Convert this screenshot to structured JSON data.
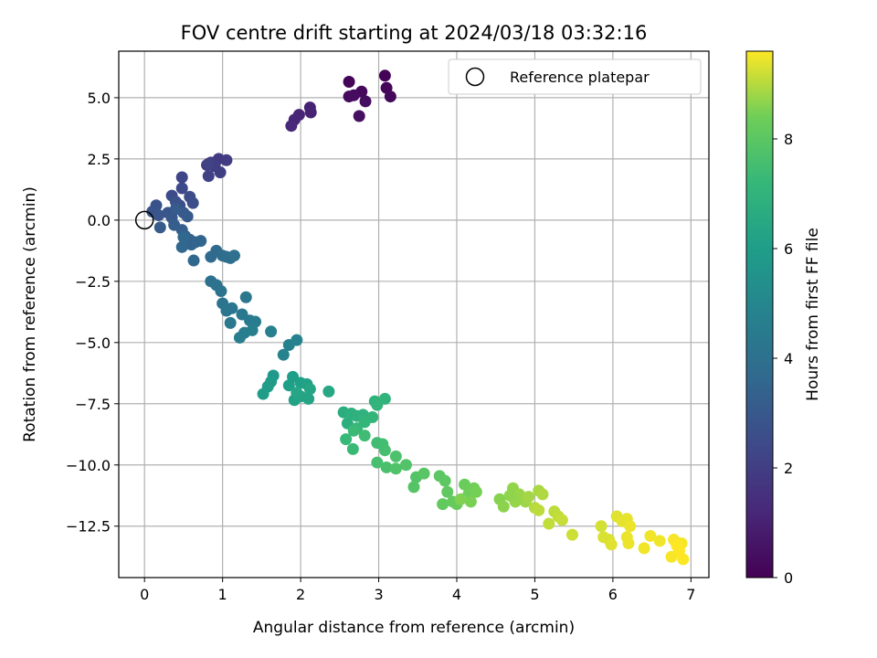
{
  "chart_data": {
    "type": "scatter",
    "title": "FOV centre drift starting at 2024/03/18 03:32:16",
    "xlabel": "Angular distance from reference (arcmin)",
    "ylabel": "Rotation from reference (arcmin)",
    "xlim": [
      -0.33,
      7.23
    ],
    "ylim": [
      -14.6,
      6.9
    ],
    "xticks": [
      0,
      1,
      2,
      3,
      4,
      5,
      6,
      7
    ],
    "xtick_labels": [
      "0",
      "1",
      "2",
      "3",
      "4",
      "5",
      "6",
      "7"
    ],
    "yticks": [
      5.0,
      2.5,
      0.0,
      -2.5,
      -5.0,
      -7.5,
      -10.0,
      -12.5
    ],
    "ytick_labels": [
      "5.0",
      "2.5",
      "0.0",
      "−2.5",
      "−5.0",
      "−7.5",
      "−10.0",
      "−12.5"
    ],
    "grid": true,
    "legend": {
      "position": "upper right",
      "entries": [
        "Reference platepar"
      ]
    },
    "reference_point": {
      "label": "Reference platepar",
      "x": 0.0,
      "y": 0.0
    },
    "colormap": "viridis",
    "colorbar": {
      "label": "Hours from first FF file",
      "range": [
        0,
        9.6
      ],
      "ticks": [
        0,
        2,
        4,
        6,
        8
      ],
      "tick_labels": [
        "0",
        "2",
        "4",
        "6",
        "8"
      ]
    },
    "points": [
      [
        3.08,
        5.9,
        0.05
      ],
      [
        2.62,
        5.65,
        0.1
      ],
      [
        3.1,
        5.4,
        0.15
      ],
      [
        2.78,
        5.25,
        0.2
      ],
      [
        3.15,
        5.05,
        0.25
      ],
      [
        2.62,
        5.05,
        0.3
      ],
      [
        2.68,
        5.1,
        0.35
      ],
      [
        2.83,
        4.85,
        0.4
      ],
      [
        2.75,
        4.25,
        0.45
      ],
      [
        2.12,
        4.6,
        1.0
      ],
      [
        2.13,
        4.4,
        1.05
      ],
      [
        1.98,
        4.3,
        1.1
      ],
      [
        1.92,
        4.1,
        1.15
      ],
      [
        1.88,
        3.85,
        1.2
      ],
      [
        0.8,
        2.25,
        1.8
      ],
      [
        0.85,
        2.35,
        1.85
      ],
      [
        0.95,
        2.5,
        1.9
      ],
      [
        1.05,
        2.45,
        1.95
      ],
      [
        0.9,
        2.2,
        2.0
      ],
      [
        0.97,
        1.95,
        2.05
      ],
      [
        0.82,
        1.8,
        2.1
      ],
      [
        0.82,
        2.3,
        2.15
      ],
      [
        0.48,
        1.75,
        2.3
      ],
      [
        0.48,
        1.3,
        2.4
      ],
      [
        0.35,
        1.0,
        2.5
      ],
      [
        0.58,
        0.95,
        2.55
      ],
      [
        0.62,
        0.7,
        2.6
      ],
      [
        0.45,
        0.6,
        2.65
      ],
      [
        0.4,
        0.75,
        2.7
      ],
      [
        0.15,
        0.6,
        2.75
      ],
      [
        0.1,
        0.35,
        2.8
      ],
      [
        0.18,
        0.2,
        2.85
      ],
      [
        0.3,
        0.3,
        2.9
      ],
      [
        0.35,
        0.1,
        2.95
      ],
      [
        0.5,
        0.3,
        3.0
      ],
      [
        0.55,
        0.15,
        3.05
      ],
      [
        0.4,
        0.45,
        3.1
      ],
      [
        0.2,
        -0.3,
        3.15
      ],
      [
        0.38,
        -0.2,
        3.2
      ],
      [
        0.48,
        -0.4,
        3.25
      ],
      [
        0.52,
        -0.65,
        3.3
      ],
      [
        0.58,
        -0.8,
        3.35
      ],
      [
        0.65,
        -0.9,
        3.4
      ],
      [
        0.6,
        -1.0,
        3.45
      ],
      [
        0.72,
        -0.85,
        3.5
      ],
      [
        0.48,
        -1.1,
        3.55
      ],
      [
        0.5,
        -0.7,
        3.6
      ],
      [
        0.63,
        -1.65,
        3.65
      ],
      [
        0.85,
        -1.5,
        3.7
      ],
      [
        0.92,
        -1.25,
        3.75
      ],
      [
        1.0,
        -1.45,
        3.8
      ],
      [
        1.05,
        -1.5,
        3.85
      ],
      [
        1.1,
        -1.55,
        3.9
      ],
      [
        1.15,
        -1.45,
        3.95
      ],
      [
        0.85,
        -2.5,
        4.0
      ],
      [
        0.92,
        -2.65,
        4.05
      ],
      [
        0.98,
        -2.9,
        4.1
      ],
      [
        1.0,
        -3.4,
        4.15
      ],
      [
        1.05,
        -3.7,
        4.2
      ],
      [
        1.12,
        -3.6,
        4.25
      ],
      [
        1.3,
        -3.15,
        4.3
      ],
      [
        1.25,
        -3.85,
        4.35
      ],
      [
        1.1,
        -4.2,
        4.4
      ],
      [
        1.35,
        -4.1,
        4.45
      ],
      [
        1.42,
        -4.15,
        4.5
      ],
      [
        1.28,
        -4.6,
        4.55
      ],
      [
        1.22,
        -4.8,
        4.6
      ],
      [
        1.38,
        -4.5,
        4.65
      ],
      [
        1.62,
        -4.55,
        4.7
      ],
      [
        1.85,
        -5.1,
        4.75
      ],
      [
        1.95,
        -4.9,
        4.8
      ],
      [
        1.78,
        -5.5,
        4.85
      ],
      [
        1.65,
        -6.35,
        5.8
      ],
      [
        1.62,
        -6.6,
        5.85
      ],
      [
        1.58,
        -6.8,
        5.9
      ],
      [
        1.52,
        -7.1,
        5.95
      ],
      [
        1.9,
        -6.4,
        6.0
      ],
      [
        1.85,
        -6.75,
        6.05
      ],
      [
        2.0,
        -6.65,
        6.1
      ],
      [
        2.08,
        -6.7,
        6.15
      ],
      [
        1.92,
        -7.35,
        6.2
      ],
      [
        2.0,
        -7.2,
        6.25
      ],
      [
        2.1,
        -7.3,
        6.3
      ],
      [
        2.12,
        -6.9,
        6.35
      ],
      [
        1.95,
        -7.05,
        6.4
      ],
      [
        2.36,
        -7.0,
        6.45
      ],
      [
        2.55,
        -7.85,
        6.7
      ],
      [
        2.6,
        -8.3,
        6.75
      ],
      [
        2.65,
        -7.9,
        6.8
      ],
      [
        2.72,
        -8.0,
        6.85
      ],
      [
        2.8,
        -7.95,
        6.9
      ],
      [
        2.95,
        -7.4,
        6.95
      ],
      [
        3.08,
        -7.3,
        7.0
      ],
      [
        2.98,
        -7.55,
        7.05
      ],
      [
        2.92,
        -8.05,
        7.1
      ],
      [
        2.82,
        -8.25,
        7.15
      ],
      [
        2.72,
        -8.5,
        7.2
      ],
      [
        2.58,
        -8.95,
        7.25
      ],
      [
        2.67,
        -9.35,
        7.3
      ],
      [
        2.68,
        -8.6,
        7.35
      ],
      [
        2.82,
        -8.8,
        7.4
      ],
      [
        2.98,
        -9.1,
        7.45
      ],
      [
        3.05,
        -9.15,
        7.5
      ],
      [
        3.08,
        -9.4,
        7.55
      ],
      [
        2.98,
        -9.9,
        7.6
      ],
      [
        3.1,
        -10.1,
        7.65
      ],
      [
        3.22,
        -9.65,
        7.7
      ],
      [
        3.22,
        -10.15,
        7.75
      ],
      [
        3.35,
        -10.0,
        7.8
      ],
      [
        3.48,
        -10.5,
        7.85
      ],
      [
        3.45,
        -10.9,
        7.9
      ],
      [
        3.58,
        -10.35,
        7.95
      ],
      [
        3.78,
        -10.45,
        8.0
      ],
      [
        3.85,
        -10.65,
        8.05
      ],
      [
        3.88,
        -11.1,
        8.1
      ],
      [
        3.82,
        -11.6,
        8.15
      ],
      [
        3.95,
        -11.5,
        8.2
      ],
      [
        4.0,
        -11.6,
        8.25
      ],
      [
        4.1,
        -10.8,
        8.3
      ],
      [
        4.15,
        -11.2,
        8.35
      ],
      [
        4.22,
        -10.95,
        8.4
      ],
      [
        4.25,
        -11.1,
        8.45
      ],
      [
        4.18,
        -11.5,
        8.5
      ],
      [
        4.05,
        -11.4,
        8.55
      ],
      [
        4.55,
        -11.4,
        8.6
      ],
      [
        4.6,
        -11.7,
        8.65
      ],
      [
        4.72,
        -10.95,
        8.7
      ],
      [
        4.8,
        -11.2,
        8.75
      ],
      [
        4.88,
        -11.5,
        8.8
      ],
      [
        4.92,
        -11.3,
        8.85
      ],
      [
        5.05,
        -11.05,
        8.9
      ],
      [
        5.1,
        -11.2,
        8.95
      ],
      [
        5.0,
        -11.75,
        9.0
      ],
      [
        5.05,
        -11.85,
        9.05
      ],
      [
        4.75,
        -11.5,
        8.72
      ],
      [
        4.68,
        -11.25,
        8.68
      ],
      [
        5.25,
        -11.9,
        9.05
      ],
      [
        5.3,
        -12.1,
        9.1
      ],
      [
        5.35,
        -12.25,
        9.15
      ],
      [
        5.18,
        -12.4,
        9.1
      ],
      [
        5.48,
        -12.85,
        9.2
      ],
      [
        5.85,
        -12.5,
        9.25
      ],
      [
        5.88,
        -12.95,
        9.3
      ],
      [
        5.95,
        -13.05,
        9.3
      ],
      [
        5.98,
        -13.25,
        9.35
      ],
      [
        6.05,
        -12.1,
        9.35
      ],
      [
        6.12,
        -12.3,
        9.4
      ],
      [
        6.18,
        -12.2,
        9.4
      ],
      [
        6.22,
        -12.5,
        9.45
      ],
      [
        6.18,
        -12.95,
        9.45
      ],
      [
        6.2,
        -13.2,
        9.45
      ],
      [
        6.4,
        -13.4,
        9.5
      ],
      [
        6.48,
        -12.9,
        9.5
      ],
      [
        6.6,
        -13.1,
        9.5
      ],
      [
        6.75,
        -13.75,
        9.55
      ],
      [
        6.78,
        -13.05,
        9.55
      ],
      [
        6.88,
        -13.2,
        9.55
      ],
      [
        6.85,
        -13.5,
        9.6
      ],
      [
        6.9,
        -13.85,
        9.6
      ],
      [
        6.82,
        -13.3,
        9.6
      ]
    ]
  }
}
